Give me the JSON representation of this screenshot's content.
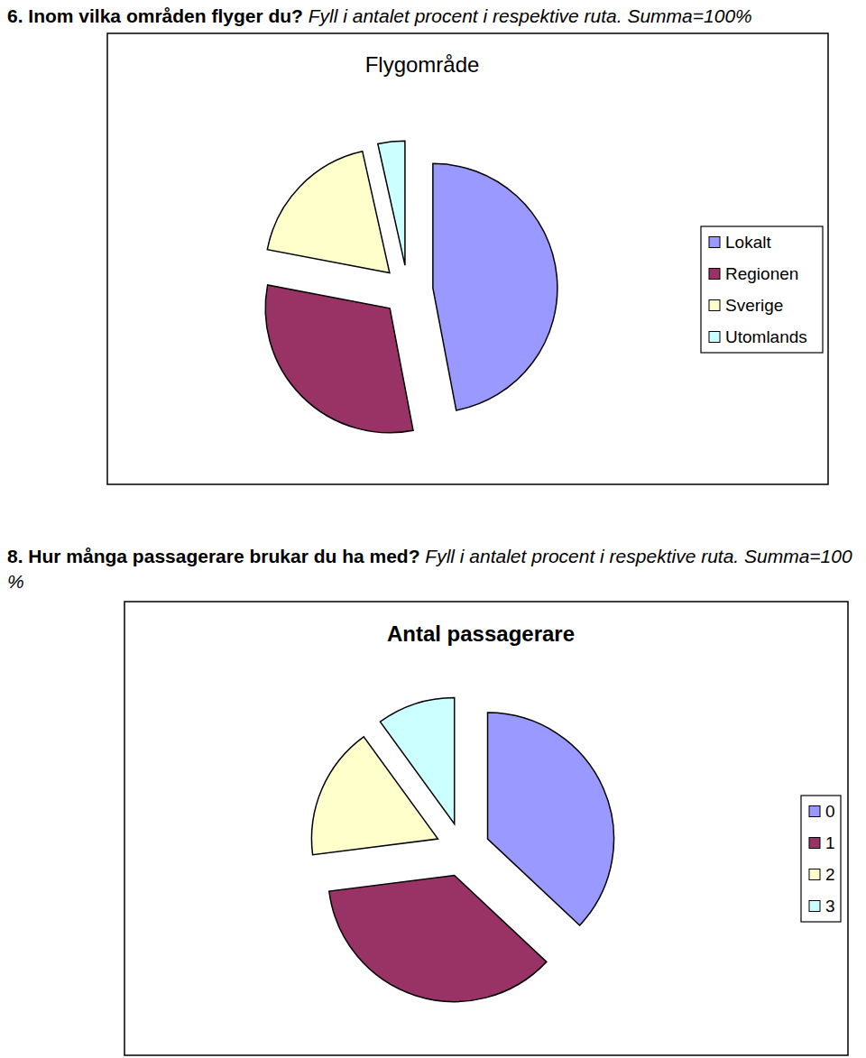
{
  "headings": [
    {
      "bold": "6. Inom vilka områden flyger du?",
      "italic": "Fyll i antalet procent i respektive ruta. Summa=100%"
    },
    {
      "bold": "8. Hur många passagerare brukar du ha med?",
      "italic": "Fyll i antalet procent i respektive ruta. Summa=100 %"
    }
  ],
  "chart_data": [
    {
      "type": "pie",
      "title": "Flygområde",
      "categories": [
        "Lokalt",
        "Regionen",
        "Sverige",
        "Utomlands"
      ],
      "values": [
        47,
        31,
        18.5,
        3.5
      ],
      "colors": [
        "#9999ff",
        "#993366",
        "#ffffcc",
        "#ccffff"
      ],
      "legend": "right"
    },
    {
      "type": "pie",
      "title": "Antal passagerare",
      "categories": [
        "0",
        "1",
        "2",
        "3"
      ],
      "values": [
        37,
        36,
        17,
        10
      ],
      "colors": [
        "#9999ff",
        "#993366",
        "#ffffcc",
        "#ccffff"
      ],
      "legend": "right"
    }
  ]
}
